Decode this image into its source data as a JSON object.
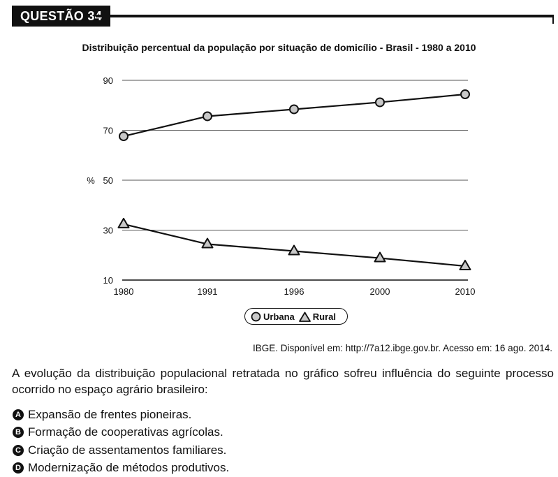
{
  "header": {
    "label": "QUESTÃO 34"
  },
  "chart_data": {
    "type": "line",
    "title": "Distribuição percentual da população por situação de domicílio - Brasil - 1980 a 2010",
    "ylabel": "%",
    "xlabel": "",
    "categories": [
      "1980",
      "1991",
      "1996",
      "2000",
      "2010"
    ],
    "yticks": [
      "90",
      "70",
      "50",
      "30",
      "10"
    ],
    "ylim": [
      10,
      90
    ],
    "grid": true,
    "legend_position": "bottom",
    "series": [
      {
        "name": "Urbana",
        "marker": "circle",
        "values": [
          67.6,
          75.6,
          78.4,
          81.2,
          84.4
        ]
      },
      {
        "name": "Rural",
        "marker": "triangle",
        "values": [
          32.4,
          24.4,
          21.6,
          18.8,
          15.6
        ]
      }
    ]
  },
  "source": "IBGE. Disponível em: http://7a12.ibge.gov.br. Acesso em: 16 ago. 2014.",
  "question": "A evolução da distribuição populacional retratada no gráfico sofreu influência do seguinte processo ocorrido no espaço agrário brasileiro:",
  "options": [
    {
      "letter": "A",
      "text": "Expansão de frentes pioneiras."
    },
    {
      "letter": "B",
      "text": "Formação de cooperativas agrícolas."
    },
    {
      "letter": "C",
      "text": "Criação de assentamentos familiares."
    },
    {
      "letter": "D",
      "text": "Modernização de métodos produtivos."
    }
  ],
  "colors": {
    "marker_fill": "#c8c8c8",
    "line": "#111111",
    "gridline": "#555555"
  }
}
